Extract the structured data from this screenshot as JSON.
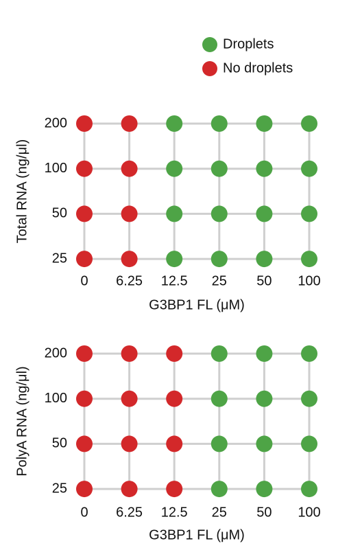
{
  "legend": {
    "series": [
      {
        "name": "Droplets",
        "color": "#4ea446"
      },
      {
        "name": "No droplets",
        "color": "#d3282a"
      }
    ]
  },
  "chart_data": [
    {
      "type": "dot-matrix",
      "x_label": "G3BP1 FL (μM)",
      "y_label": "Total RNA (ng/μl)",
      "categories": [
        "0",
        "6.25",
        "12.5",
        "25",
        "50",
        "100"
      ],
      "y_categories": [
        "200",
        "100",
        "50",
        "25"
      ],
      "droplets": [
        [
          false,
          false,
          true,
          true,
          true,
          true
        ],
        [
          false,
          false,
          true,
          true,
          true,
          true
        ],
        [
          false,
          false,
          true,
          true,
          true,
          true
        ],
        [
          false,
          false,
          true,
          true,
          true,
          true
        ]
      ],
      "grid": true
    },
    {
      "type": "dot-matrix",
      "x_label": "G3BP1 FL (μM)",
      "y_label": "PolyA RNA (ng/μl)",
      "categories": [
        "0",
        "6.25",
        "12.5",
        "25",
        "50",
        "100"
      ],
      "y_categories": [
        "200",
        "100",
        "50",
        "25"
      ],
      "droplets": [
        [
          false,
          false,
          false,
          true,
          true,
          true
        ],
        [
          false,
          false,
          false,
          true,
          true,
          true
        ],
        [
          false,
          false,
          false,
          true,
          true,
          true
        ],
        [
          false,
          false,
          false,
          true,
          true,
          true
        ]
      ],
      "grid": true
    }
  ]
}
